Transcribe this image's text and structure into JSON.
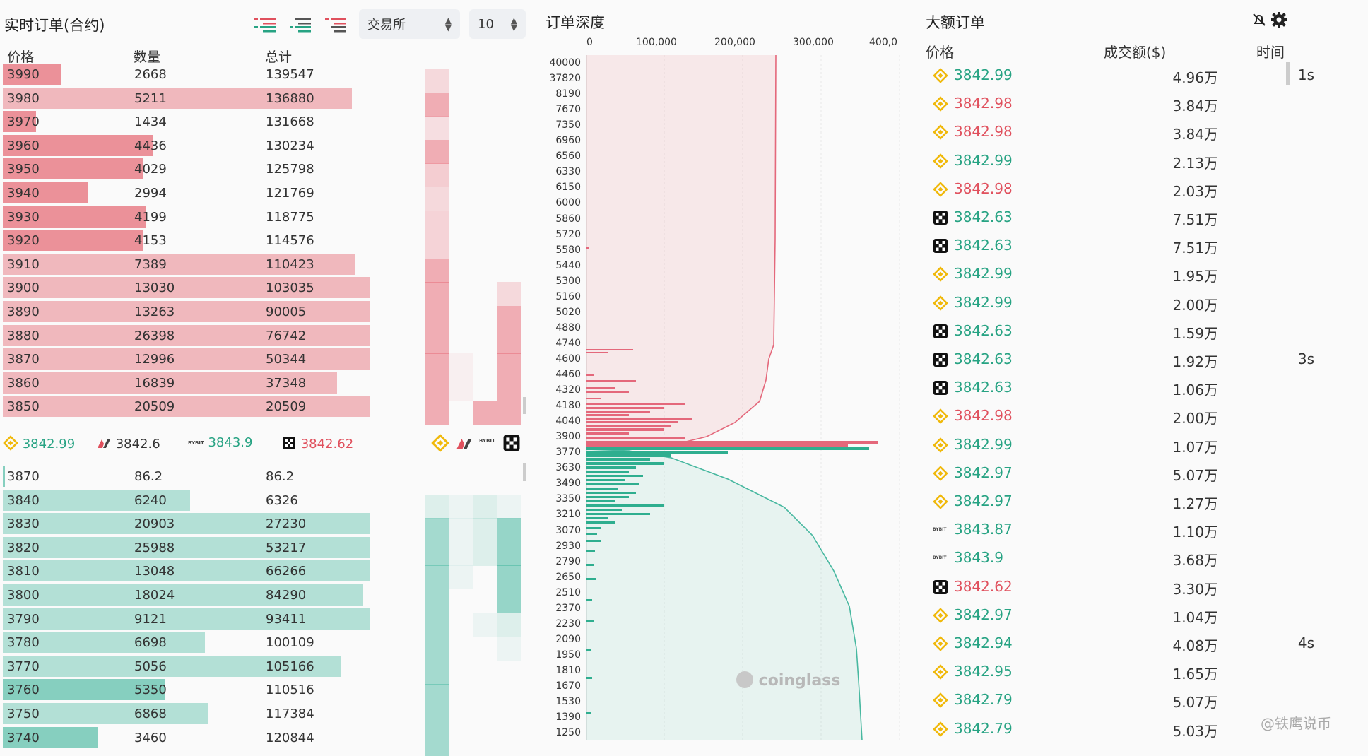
{
  "orderbook": {
    "title": "实时订单(合约)",
    "exchange_select": "交易所",
    "depth_select": "10",
    "headers": {
      "price": "价格",
      "qty": "数量",
      "total": "总计"
    },
    "asks": [
      {
        "price": "3990",
        "qty": "2668",
        "total": "139547",
        "w": 0.16
      },
      {
        "price": "3980",
        "qty": "5211",
        "total": "136880",
        "w": 0.95
      },
      {
        "price": "3970",
        "qty": "1434",
        "total": "131668",
        "w": 0.09
      },
      {
        "price": "3960",
        "qty": "4436",
        "total": "130234",
        "w": 0.41
      },
      {
        "price": "3950",
        "qty": "4029",
        "total": "125798",
        "w": 0.38
      },
      {
        "price": "3940",
        "qty": "2994",
        "total": "121769",
        "w": 0.23
      },
      {
        "price": "3930",
        "qty": "4199",
        "total": "118775",
        "w": 0.39
      },
      {
        "price": "3920",
        "qty": "4153",
        "total": "114576",
        "w": 0.38
      },
      {
        "price": "3910",
        "qty": "7389",
        "total": "110423",
        "w": 0.96
      },
      {
        "price": "3900",
        "qty": "13030",
        "total": "103035",
        "w": 1.0
      },
      {
        "price": "3890",
        "qty": "13263",
        "total": "90005",
        "w": 1.0
      },
      {
        "price": "3880",
        "qty": "26398",
        "total": "76742",
        "w": 1.0
      },
      {
        "price": "3870",
        "qty": "12996",
        "total": "50344",
        "w": 1.0
      },
      {
        "price": "3860",
        "qty": "16839",
        "total": "37348",
        "w": 0.91
      },
      {
        "price": "3850",
        "qty": "20509",
        "total": "20509",
        "w": 1.0
      }
    ],
    "bids": [
      {
        "price": "3870",
        "qty": "86.2",
        "total": "86.2",
        "w": 0.005
      },
      {
        "price": "3840",
        "qty": "6240",
        "total": "6326",
        "w": 0.51
      },
      {
        "price": "3830",
        "qty": "20903",
        "total": "27230",
        "w": 1.0
      },
      {
        "price": "3820",
        "qty": "25988",
        "total": "53217",
        "w": 1.0
      },
      {
        "price": "3810",
        "qty": "13048",
        "total": "66266",
        "w": 1.0
      },
      {
        "price": "3800",
        "qty": "18024",
        "total": "84290",
        "w": 0.98
      },
      {
        "price": "3790",
        "qty": "9121",
        "total": "93411",
        "w": 1.0
      },
      {
        "price": "3780",
        "qty": "6698",
        "total": "100109",
        "w": 0.55
      },
      {
        "price": "3770",
        "qty": "5056",
        "total": "105166",
        "w": 0.92
      },
      {
        "price": "3760",
        "qty": "5350",
        "total": "110516",
        "w": 0.44
      },
      {
        "price": "3750",
        "qty": "6868",
        "total": "117384",
        "w": 0.56
      },
      {
        "price": "3740",
        "qty": "3460",
        "total": "120844",
        "w": 0.26
      }
    ],
    "exchange_prices": [
      {
        "name": "Binance",
        "price": "3842.99",
        "color": "green"
      },
      {
        "name": "Bitmex",
        "price": "3842.6",
        "color": "neutral"
      },
      {
        "name": "Bybit",
        "price": "3843.9",
        "color": "green"
      },
      {
        "name": "OKX",
        "price": "3842.62",
        "color": "red"
      }
    ]
  },
  "depth": {
    "title": "订单深度",
    "x_ticks": [
      "0",
      "100,000",
      "200,000",
      "300,000",
      "400,0"
    ],
    "y_ticks": [
      "40000",
      "37820",
      "8190",
      "7670",
      "7350",
      "6960",
      "6560",
      "6330",
      "6150",
      "6000",
      "5860",
      "5720",
      "5580",
      "5440",
      "5300",
      "5160",
      "5020",
      "4880",
      "4740",
      "4600",
      "4460",
      "4320",
      "4180",
      "4040",
      "3900",
      "3770",
      "3630",
      "3490",
      "3350",
      "3210",
      "3070",
      "2930",
      "2790",
      "2650",
      "2510",
      "2370",
      "2230",
      "2090",
      "1950",
      "1810",
      "1670",
      "1530",
      "1390",
      "1250"
    ],
    "watermark": "coinglass"
  },
  "large_orders": {
    "title": "大额订单",
    "headers": {
      "price": "价格",
      "amount": "成交额($)",
      "time": "时间"
    },
    "rows": [
      {
        "ex": "binance",
        "price": "3842.99",
        "side": "green",
        "amount": "4.96万",
        "time": "1s"
      },
      {
        "ex": "binance",
        "price": "3842.98",
        "side": "red",
        "amount": "3.84万",
        "time": ""
      },
      {
        "ex": "binance",
        "price": "3842.98",
        "side": "red",
        "amount": "3.84万",
        "time": ""
      },
      {
        "ex": "binance",
        "price": "3842.99",
        "side": "green",
        "amount": "2.13万",
        "time": ""
      },
      {
        "ex": "binance",
        "price": "3842.98",
        "side": "red",
        "amount": "2.03万",
        "time": ""
      },
      {
        "ex": "okx",
        "price": "3842.63",
        "side": "green",
        "amount": "7.51万",
        "time": ""
      },
      {
        "ex": "okx",
        "price": "3842.63",
        "side": "green",
        "amount": "7.51万",
        "time": ""
      },
      {
        "ex": "binance",
        "price": "3842.99",
        "side": "green",
        "amount": "1.95万",
        "time": ""
      },
      {
        "ex": "binance",
        "price": "3842.99",
        "side": "green",
        "amount": "2.00万",
        "time": ""
      },
      {
        "ex": "okx",
        "price": "3842.63",
        "side": "green",
        "amount": "1.59万",
        "time": ""
      },
      {
        "ex": "okx",
        "price": "3842.63",
        "side": "green",
        "amount": "1.92万",
        "time": "3s"
      },
      {
        "ex": "okx",
        "price": "3842.63",
        "side": "green",
        "amount": "1.06万",
        "time": ""
      },
      {
        "ex": "binance",
        "price": "3842.98",
        "side": "red",
        "amount": "2.00万",
        "time": ""
      },
      {
        "ex": "binance",
        "price": "3842.99",
        "side": "green",
        "amount": "1.07万",
        "time": ""
      },
      {
        "ex": "binance",
        "price": "3842.97",
        "side": "green",
        "amount": "5.07万",
        "time": ""
      },
      {
        "ex": "binance",
        "price": "3842.97",
        "side": "green",
        "amount": "1.27万",
        "time": ""
      },
      {
        "ex": "bybit",
        "price": "3843.87",
        "side": "green",
        "amount": "1.10万",
        "time": ""
      },
      {
        "ex": "bybit",
        "price": "3843.9",
        "side": "green",
        "amount": "3.68万",
        "time": ""
      },
      {
        "ex": "okx",
        "price": "3842.62",
        "side": "red",
        "amount": "3.30万",
        "time": ""
      },
      {
        "ex": "binance",
        "price": "3842.97",
        "side": "green",
        "amount": "1.04万",
        "time": ""
      },
      {
        "ex": "binance",
        "price": "3842.94",
        "side": "green",
        "amount": "4.08万",
        "time": "4s"
      },
      {
        "ex": "binance",
        "price": "3842.95",
        "side": "green",
        "amount": "1.65万",
        "time": ""
      },
      {
        "ex": "binance",
        "price": "3842.79",
        "side": "green",
        "amount": "5.07万",
        "time": ""
      },
      {
        "ex": "binance",
        "price": "3842.79",
        "side": "green",
        "amount": "5.03万",
        "time": ""
      }
    ]
  },
  "footer_watermark": "@铁鹰说币",
  "colors": {
    "ask": "#e4687 3",
    "bid": "#48b8a0",
    "green_text": "#27a383",
    "red_text": "#e0505d",
    "binance": "#f0b90b"
  }
}
